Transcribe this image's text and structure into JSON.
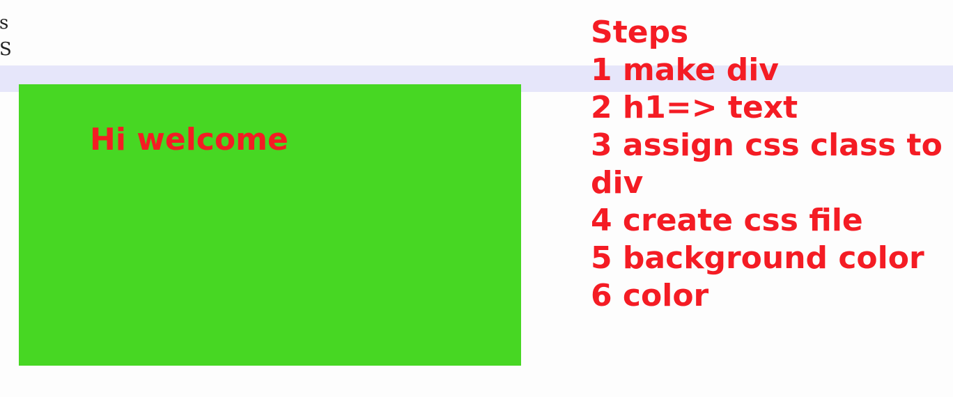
{
  "edge_letters": {
    "top": "s",
    "bottom": "S"
  },
  "welcome": {
    "heading": "Hi welcome"
  },
  "steps": {
    "title": "Steps",
    "items": [
      "1 make div",
      "2 h1=> text",
      "3 assign css class to",
      "div",
      "4 create css file",
      "5 background color",
      "6 color"
    ]
  },
  "colors": {
    "box_background": "#47d723",
    "text_red": "#f41c24",
    "highlight_band": "#e6e6fa",
    "page_background": "#fdfdfd"
  }
}
